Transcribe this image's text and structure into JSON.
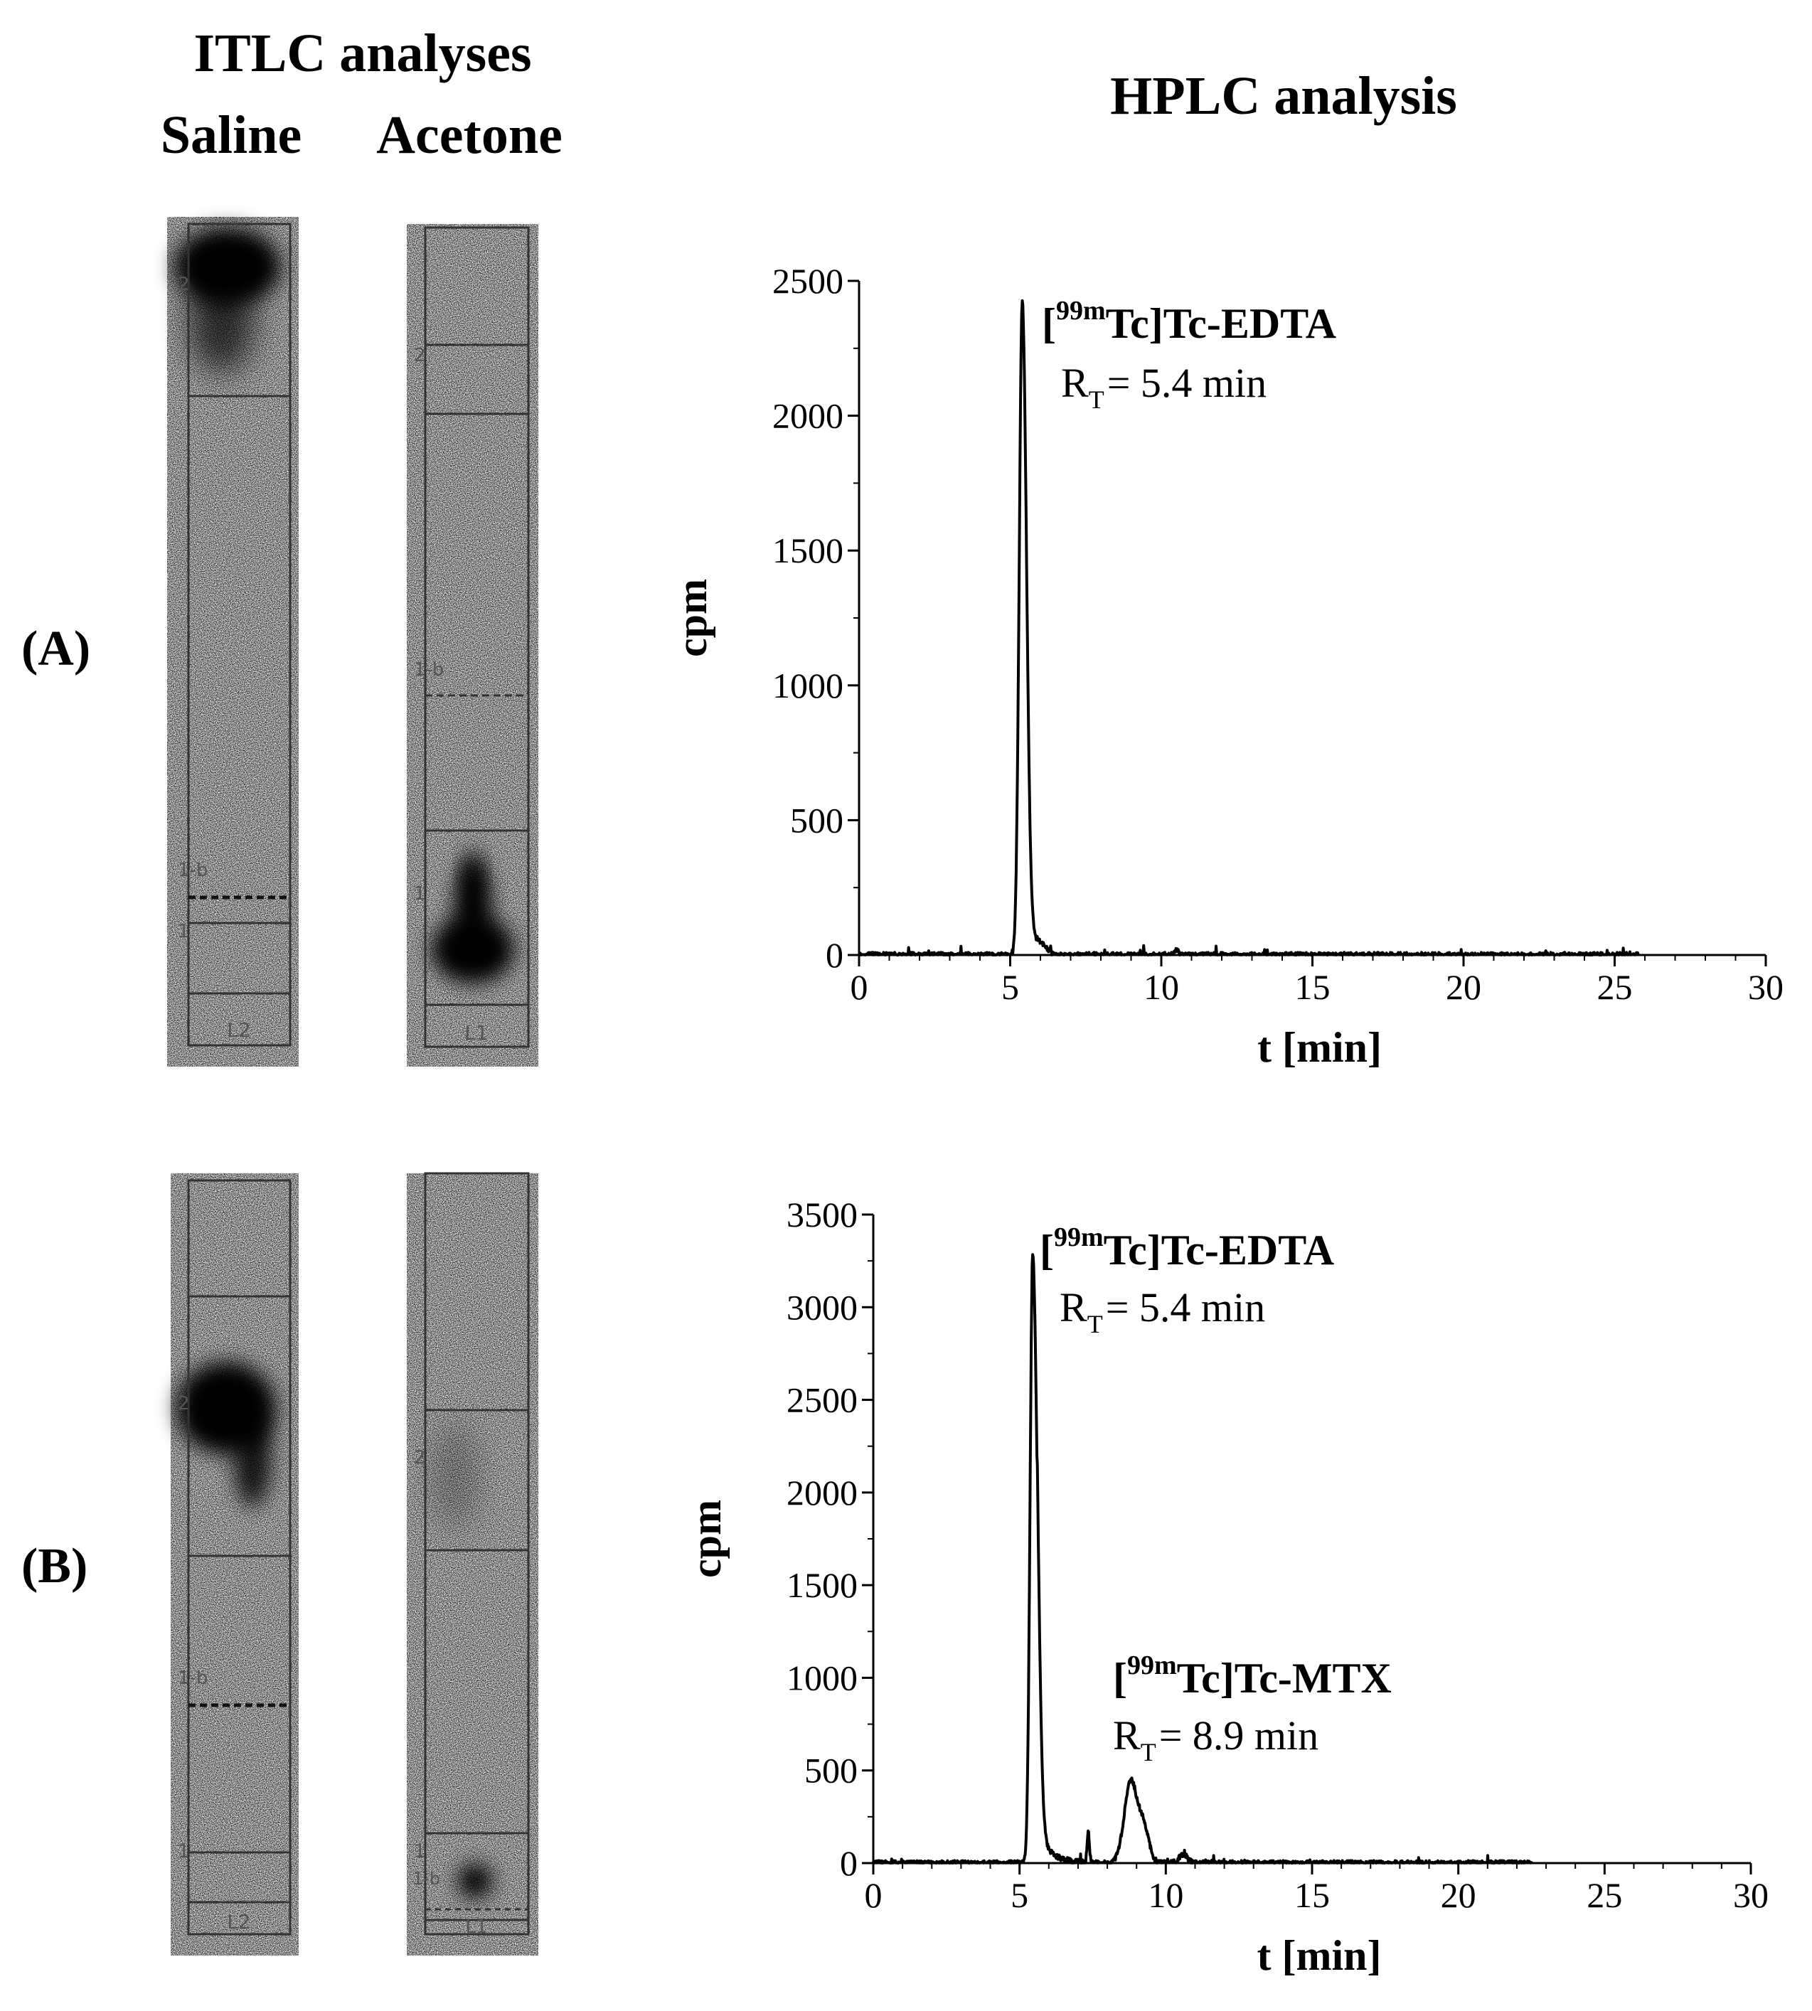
{
  "headers": {
    "itlc_title": "ITLC analyses",
    "saline": "Saline",
    "acetone": "Acetone",
    "hplc_title": "HPLC analysis"
  },
  "panels": [
    {
      "label": "(A)",
      "saline_strip": {
        "zone_labels": [
          "2",
          "1-b",
          "1"
        ],
        "lane_label": "L2"
      },
      "acetone_strip": {
        "zone_labels": [
          "2",
          "1-b",
          "1"
        ],
        "lane_label": "L1"
      }
    },
    {
      "label": "(B)",
      "saline_strip": {
        "zone_labels": [
          "2",
          "1-b",
          "1"
        ],
        "lane_label": "L2"
      },
      "acetone_strip": {
        "zone_labels": [
          "2",
          "1",
          "1-b"
        ],
        "lane_label": "L1"
      }
    }
  ],
  "chart_data": [
    {
      "type": "line",
      "panel": "(A)",
      "xlabel": "t [min]",
      "ylabel": "cpm",
      "xlim": [
        0,
        30
      ],
      "ylim": [
        0,
        2500
      ],
      "xticks": [
        0,
        5,
        10,
        15,
        20,
        25,
        30
      ],
      "yticks": [
        0,
        500,
        1000,
        1500,
        2000,
        2500
      ],
      "x_end": 25.8,
      "peaks": [
        {
          "name_sup": "99m",
          "name_pre": "[",
          "name_main": "Tc]Tc-EDTA",
          "rt_label": "= 5.4 min",
          "x": 5.4,
          "y": 2420
        }
      ],
      "annotations": [
        {
          "id": "edta",
          "pre": "[",
          "sup": "99m",
          "main": "Tc]Tc-EDTA",
          "rt_letter": "R",
          "rt_sub": "T",
          "rt_value": "= 5.4 min"
        }
      ]
    },
    {
      "type": "line",
      "panel": "(B)",
      "xlabel": "t [min]",
      "ylabel": "cpm",
      "xlim": [
        0,
        30
      ],
      "ylim": [
        0,
        3500
      ],
      "xticks": [
        0,
        5,
        10,
        15,
        20,
        25,
        30
      ],
      "yticks": [
        0,
        500,
        1000,
        1500,
        2000,
        2500,
        3000,
        3500
      ],
      "x_end": 22.5,
      "peaks": [
        {
          "x": 5.4,
          "y": 3280
        },
        {
          "x": 8.9,
          "y": 450
        }
      ],
      "annotations": [
        {
          "id": "edta",
          "pre": "[",
          "sup": "99m",
          "main": "Tc]Tc-EDTA",
          "rt_letter": "R",
          "rt_sub": "T",
          "rt_value": "= 5.4 min"
        },
        {
          "id": "mtx",
          "pre": "[",
          "sup": "99m",
          "main": "Tc]Tc-MTX",
          "rt_letter": "R",
          "rt_sub": "T",
          "rt_value": "= 8.9 min"
        }
      ]
    }
  ]
}
